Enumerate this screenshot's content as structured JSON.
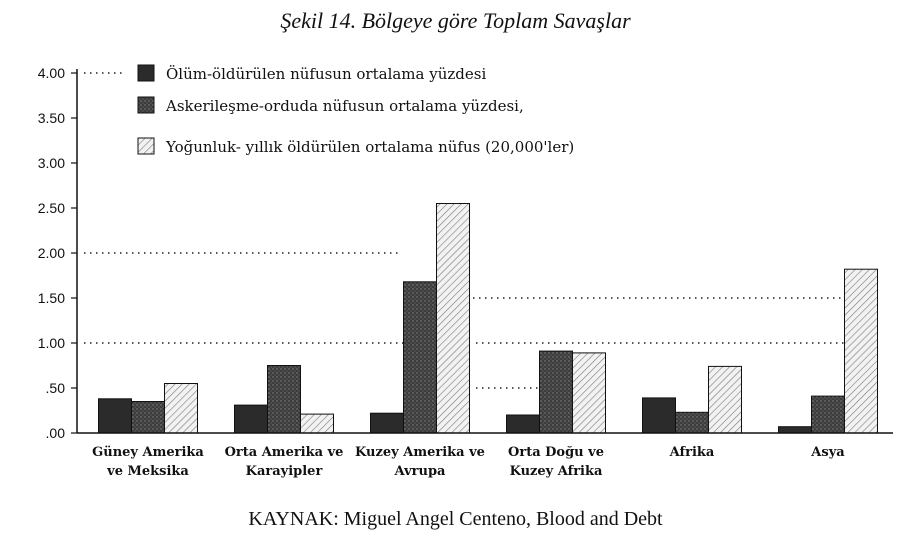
{
  "chart_data": {
    "type": "bar",
    "title": "Şekil 14. Bölgeye göre Toplam Savaşlar",
    "source": "KAYNAK: Miguel Angel Centeno, Blood and Debt",
    "ylim": [
      0,
      4
    ],
    "yticks": [
      ".00",
      ".50",
      "1.00",
      "1.50",
      "2.00",
      "2.50",
      "3.00",
      "3.50",
      "4.00"
    ],
    "categories": [
      [
        "Güney Amerika",
        "ve Meksika"
      ],
      [
        "Orta Amerika ve",
        "Karayipler"
      ],
      [
        "Kuzey Amerika ve",
        "Avrupa"
      ],
      [
        "Orta Doğu ve",
        "Kuzey Afrika"
      ],
      [
        "Afrika"
      ],
      [
        "Asya"
      ]
    ],
    "series": [
      {
        "name": "Ölüm-öldürülen nüfusun ortalama yüzdesi",
        "values": [
          0.38,
          0.31,
          0.22,
          0.2,
          0.39,
          0.07
        ],
        "fill": "solid",
        "color": "#2a2a2a"
      },
      {
        "name": "Askerileşme-orduda nüfusun ortalama yüzdesi,",
        "values": [
          0.35,
          0.75,
          1.68,
          0.91,
          0.23,
          0.41
        ],
        "fill": "dotted",
        "color": "#3a3a3a"
      },
      {
        "name": "Yoğunluk- yıllık öldürülen ortalama nüfus (20,000'ler)",
        "values": [
          0.55,
          0.21,
          2.55,
          0.89,
          0.74,
          1.82
        ],
        "fill": "hatched",
        "color": "#e8e8e8"
      }
    ],
    "reference_dotted_lines": [
      1.0,
      2.0
    ],
    "legend_position": "top-left",
    "grid": false
  }
}
